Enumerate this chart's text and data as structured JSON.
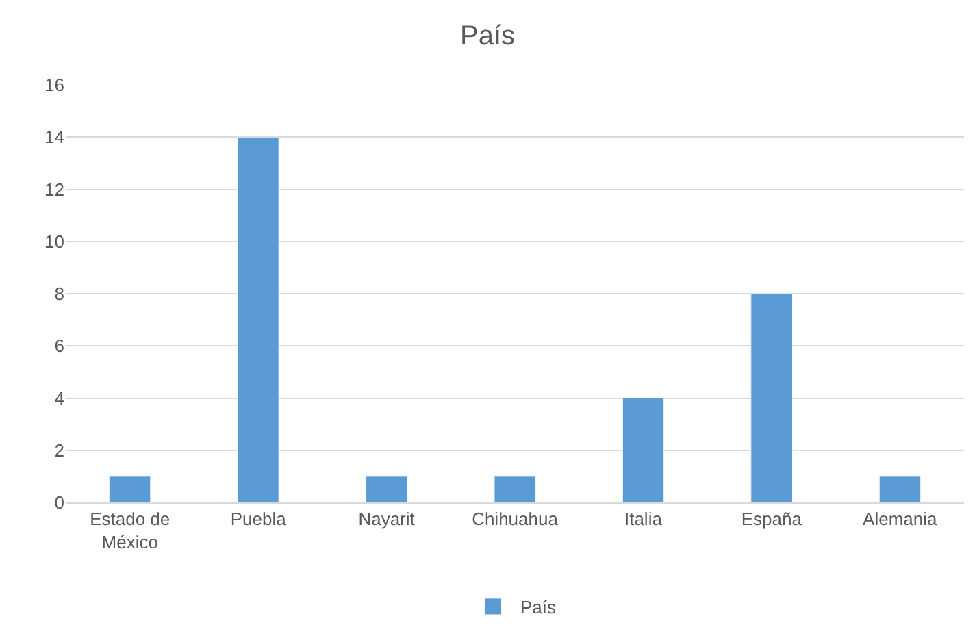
{
  "chart_data": {
    "type": "bar",
    "title": "País",
    "categories": [
      "Estado de México",
      "Puebla",
      "Nayarit",
      "Chihuahua",
      "Italia",
      "España",
      "Alemania"
    ],
    "series": [
      {
        "name": "País",
        "color": "#5b9bd5",
        "values": [
          1,
          14,
          1,
          1,
          4,
          8,
          1
        ]
      }
    ],
    "ylim": [
      0,
      16
    ],
    "yticks": [
      0,
      2,
      4,
      6,
      8,
      10,
      12,
      14,
      16
    ],
    "grid": "y",
    "legend": "bottom"
  }
}
